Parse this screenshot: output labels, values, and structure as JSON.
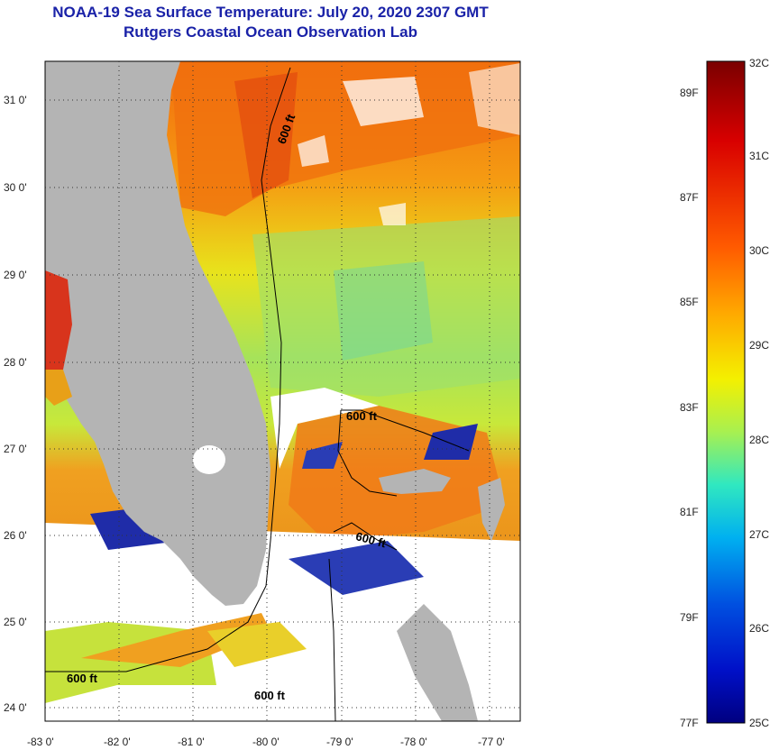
{
  "title": "NOAA-19 Sea Surface Temperature:  July 20, 2020 2307 GMT",
  "subtitle": "Rutgers Coastal Ocean Observation Lab",
  "map": {
    "lon_ticks": [
      "-83 0'",
      "-82 0'",
      "-81 0'",
      "-80 0'",
      "-79 0'",
      "-78 0'",
      "-77 0'"
    ],
    "lat_ticks": [
      "31 0'",
      "30 0'",
      "29 0'",
      "28 0'",
      "27 0'",
      "26 0'",
      "25 0'",
      "24 0'"
    ],
    "contour_labels": [
      "600 ft",
      "600 ft",
      "600 ft",
      "600 ft",
      "600 ft"
    ],
    "colors": {
      "land": "#b4b4b4",
      "cloud": "#ffffff"
    }
  },
  "colorbar": {
    "celsius": [
      "32C",
      "31C",
      "30C",
      "29C",
      "28C",
      "27C",
      "26C",
      "25C"
    ],
    "fahrenheit": [
      "89F",
      "87F",
      "85F",
      "83F",
      "81F",
      "79F",
      "77F"
    ]
  }
}
